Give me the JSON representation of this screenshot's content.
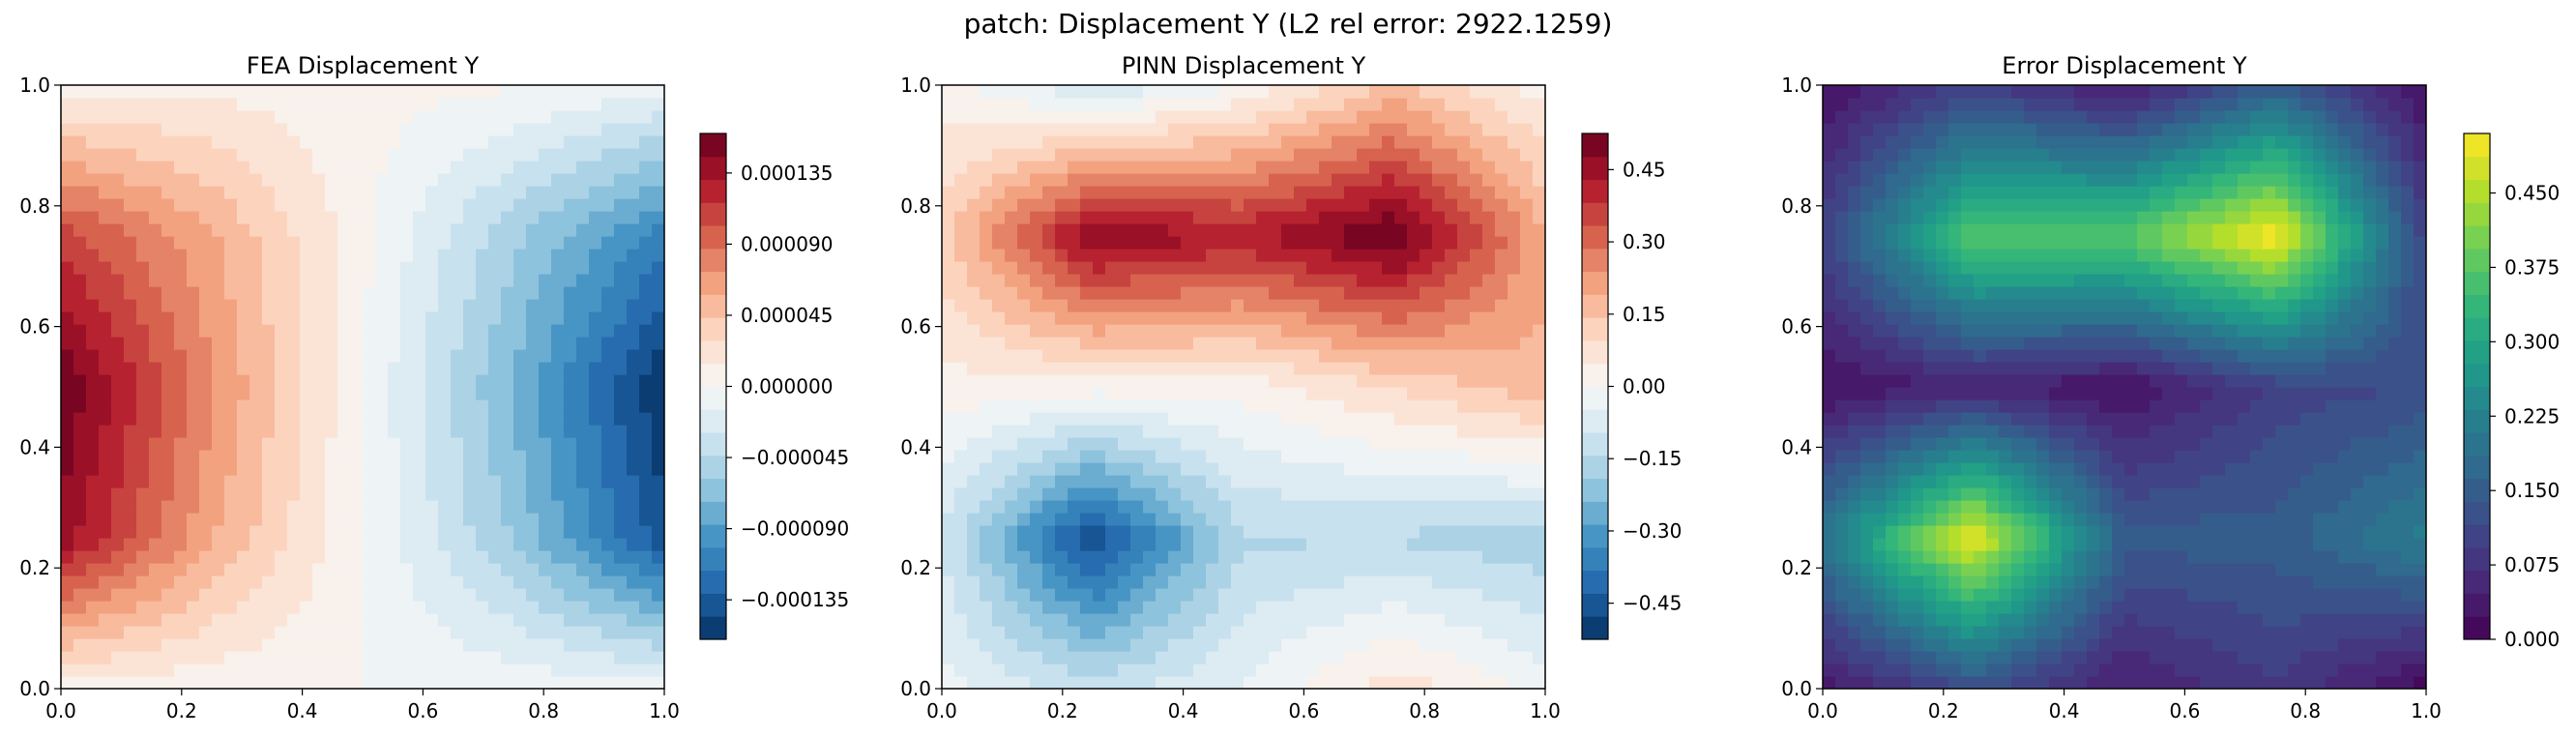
{
  "figure": {
    "suptitle": "patch: Displacement Y (L2 rel error: 2922.1259)"
  },
  "chart_data": [
    {
      "type": "heatmap",
      "title": "FEA Displacement Y",
      "xlabel": "",
      "ylabel": "",
      "xlim": [
        0,
        1
      ],
      "ylim": [
        0,
        1
      ],
      "xticks": [
        "0.0",
        "0.2",
        "0.4",
        "0.6",
        "0.8",
        "1.0"
      ],
      "yticks": [
        "0.0",
        "0.2",
        "0.4",
        "0.6",
        "0.8",
        "1.0"
      ],
      "colormap": "RdBu_r",
      "grid_x": [
        0,
        0.25,
        0.5,
        0.75,
        1
      ],
      "grid_y": [
        0,
        0.25,
        0.5,
        0.75,
        1
      ],
      "z": [
        [
          8e-06,
          0.00014,
          0.00016,
          0.00011,
          8e-06
        ],
        [
          5e-06,
          6e-05,
          7.5e-05,
          6e-05,
          1e-05
        ],
        [
          0,
          0,
          0,
          4e-06,
          6e-06
        ],
        [
          -5e-06,
          -6e-05,
          -7.5e-05,
          -5.5e-05,
          2e-06
        ],
        [
          -8e-06,
          -0.00014,
          -0.00016,
          -0.00011,
          -1e-05
        ]
      ],
      "levels": [
        -0.00016,
        0.00016,
        22
      ],
      "colorbar_ticks": [
        "−0.000135",
        "−0.000090",
        "−0.000045",
        "0.000000",
        "0.000045",
        "0.000090",
        "0.000135"
      ],
      "colorbar_tick_values": [
        -0.000135,
        -9e-05,
        -4.5e-05,
        0,
        4.5e-05,
        9e-05,
        0.000135
      ]
    },
    {
      "type": "heatmap",
      "title": "PINN Displacement Y",
      "xlabel": "",
      "ylabel": "",
      "xlim": [
        0,
        1
      ],
      "ylim": [
        0,
        1
      ],
      "xticks": [
        "0.0",
        "0.2",
        "0.4",
        "0.6",
        "0.8",
        "1.0"
      ],
      "yticks": [
        "0.0",
        "0.2",
        "0.4",
        "0.6",
        "0.8",
        "1.0"
      ],
      "colormap": "RdBu_r",
      "grid_x": [
        0,
        0.25,
        0.5,
        0.75,
        1
      ],
      "grid_y": [
        0,
        0.25,
        0.5,
        0.75,
        1
      ],
      "z": [
        [
          -0.03,
          -0.1,
          0.03,
          0.12,
          0.02
        ],
        [
          -0.12,
          -0.48,
          0.02,
          0.48,
          -0.1
        ],
        [
          -0.04,
          -0.15,
          0.02,
          0.42,
          0.0
        ],
        [
          0.08,
          -0.15,
          0.1,
          0.53,
          0.15
        ],
        [
          -0.02,
          -0.18,
          0.18,
          0.2,
          0.02
        ]
      ],
      "levels": [
        -0.525,
        0.525,
        22
      ],
      "colorbar_ticks": [
        "−0.45",
        "−0.30",
        "−0.15",
        "0.00",
        "0.15",
        "0.30",
        "0.45"
      ],
      "colorbar_tick_values": [
        -0.45,
        -0.3,
        -0.15,
        0,
        0.15,
        0.3,
        0.45
      ]
    },
    {
      "type": "heatmap",
      "title": "Error Displacement Y",
      "xlabel": "",
      "ylabel": "",
      "xlim": [
        0,
        1
      ],
      "ylim": [
        0,
        1
      ],
      "xticks": [
        "0.0",
        "0.2",
        "0.4",
        "0.6",
        "0.8",
        "1.0"
      ],
      "yticks": [
        "0.0",
        "0.2",
        "0.4",
        "0.6",
        "0.8",
        "1.0"
      ],
      "colormap": "viridis",
      "grid_x": [
        0,
        0.25,
        0.5,
        0.75,
        1
      ],
      "grid_y": [
        0,
        0.25,
        0.5,
        0.75,
        1
      ],
      "z": [
        [
          0.03,
          0.2,
          0.02,
          0.1,
          0.02
        ],
        [
          0.12,
          0.5,
          0.05,
          0.38,
          0.1
        ],
        [
          0.04,
          0.15,
          0.02,
          0.38,
          0.03
        ],
        [
          0.09,
          0.15,
          0.1,
          0.51,
          0.15
        ],
        [
          0.01,
          0.22,
          0.12,
          0.1,
          0.02
        ]
      ],
      "levels": [
        0,
        0.51,
        22
      ],
      "colorbar_ticks": [
        "0.000",
        "0.075",
        "0.150",
        "0.225",
        "0.300",
        "0.375",
        "0.450"
      ],
      "colorbar_tick_values": [
        0,
        0.075,
        0.15,
        0.225,
        0.3,
        0.375,
        0.45
      ]
    }
  ]
}
